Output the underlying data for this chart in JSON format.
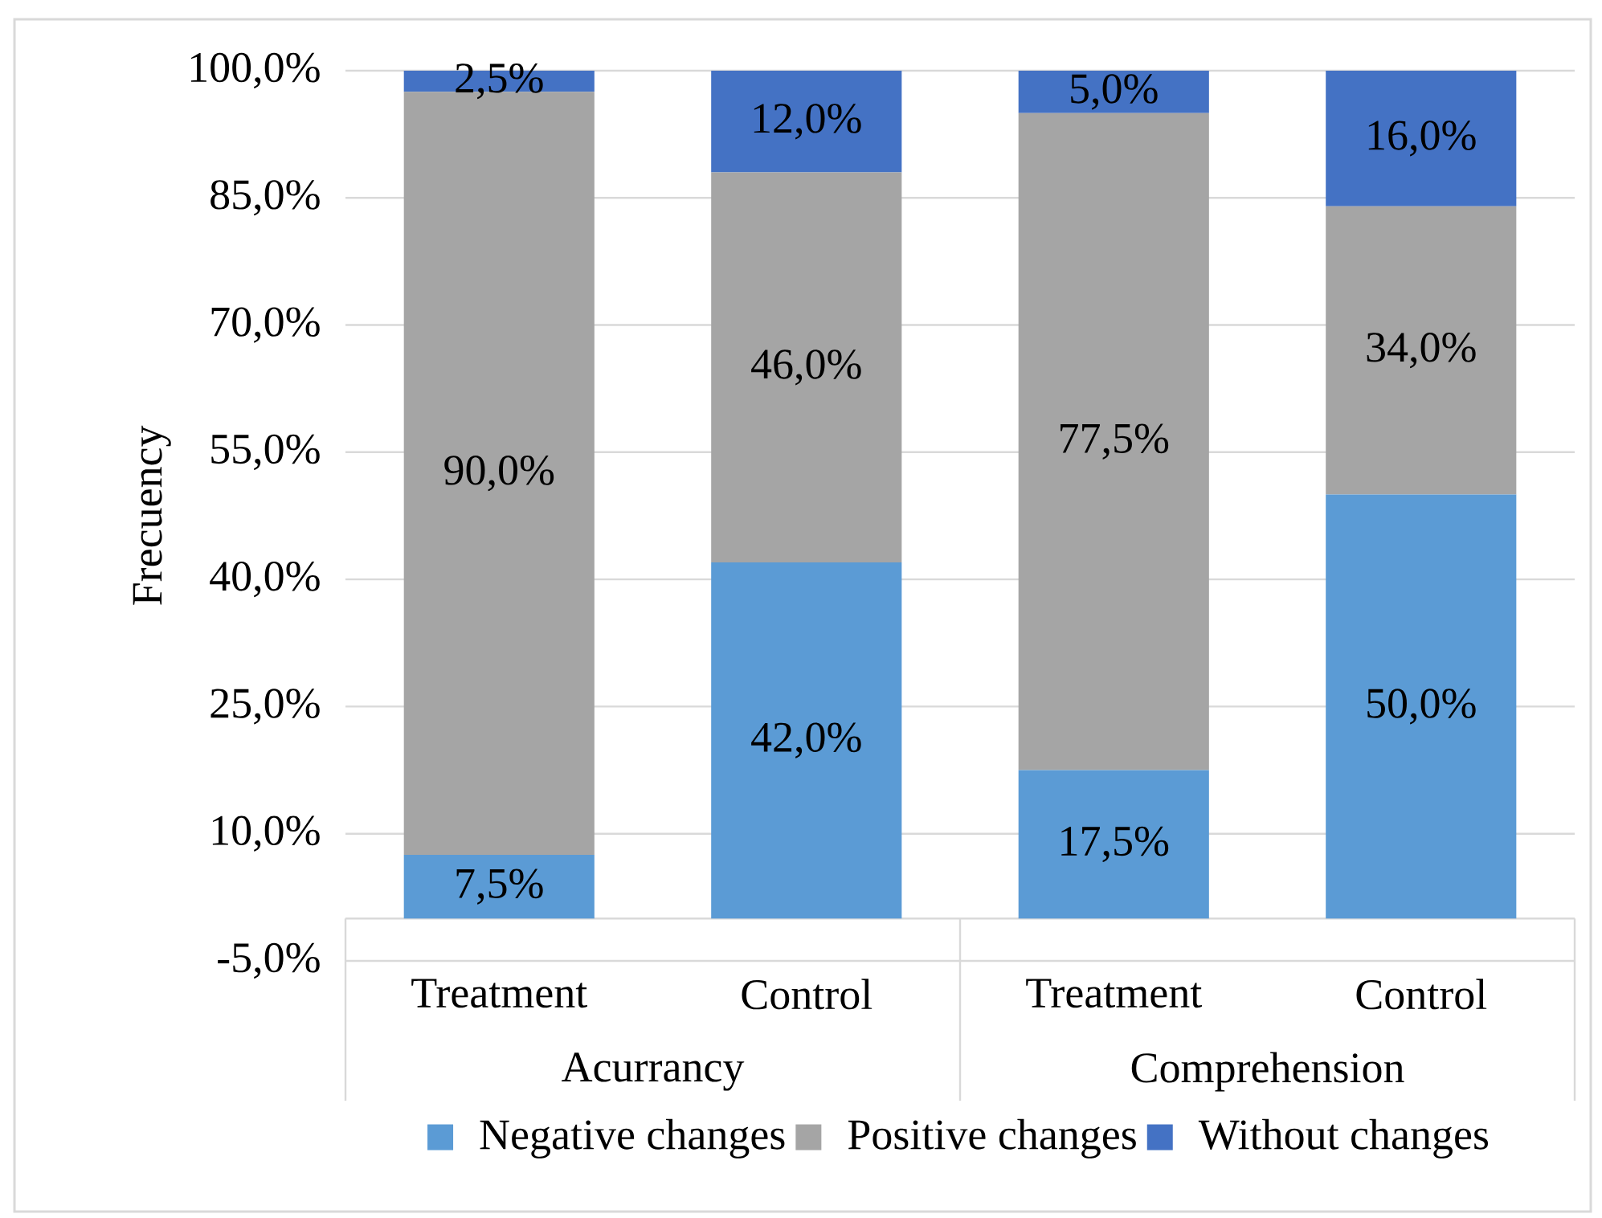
{
  "chart_data": {
    "type": "bar",
    "stacked": true,
    "ylabel": "Frecuency",
    "categories": [
      "Treatment",
      "Control",
      "Treatment",
      "Control"
    ],
    "annotations": [
      "Acurrancy",
      "Comprehension"
    ],
    "series": [
      {
        "name": "Negative changes",
        "color": "#5b9bd5",
        "values": [
          7.5,
          42.0,
          17.5,
          50.0
        ],
        "value_labels": [
          "7,5%",
          "42,0%",
          "17,5%",
          "50,0%"
        ]
      },
      {
        "name": "Positive changes",
        "color": "#a5a5a5",
        "values": [
          90.0,
          46.0,
          77.5,
          34.0
        ],
        "value_labels": [
          "90,0%",
          "46,0%",
          "77,5%",
          "34,0%"
        ]
      },
      {
        "name": "Without changes",
        "color": "#4472c4",
        "values": [
          2.5,
          12.0,
          5.0,
          16.0
        ],
        "value_labels": [
          "2,5%",
          "12,0%",
          "5,0%",
          "16,0%"
        ]
      }
    ],
    "ylim": [
      -5,
      100
    ],
    "yticks": [
      {
        "value": -5,
        "label": "-5,0%"
      },
      {
        "value": 10,
        "label": "10,0%"
      },
      {
        "value": 25,
        "label": "25,0%"
      },
      {
        "value": 40,
        "label": "40,0%"
      },
      {
        "value": 55,
        "label": "55,0%"
      },
      {
        "value": 70,
        "label": "70,0%"
      },
      {
        "value": 85,
        "label": "85,0%"
      },
      {
        "value": 100,
        "label": "100,0%"
      }
    ],
    "grid": "y",
    "legend": "bottom"
  }
}
